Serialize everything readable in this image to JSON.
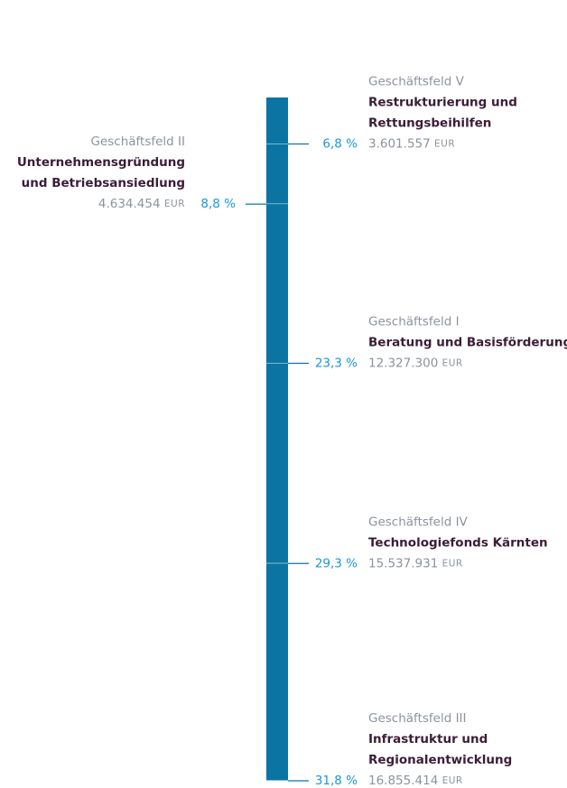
{
  "chart_data": {
    "type": "stacked-column",
    "ylim": [
      0,
      100
    ],
    "color": "#0b74a3",
    "unit": "EUR",
    "segments": [
      {
        "group": "Geschäftsfeld V",
        "name": [
          "Restrukturierung und",
          "Rettungsbeihilfen"
        ],
        "amount": "3.601.557",
        "value": 6.8,
        "value_label": "6,8 %",
        "label_side": "right"
      },
      {
        "group": "Geschäftsfeld II",
        "name": [
          "Unternehmensgründung",
          "und Betriebsansiedlung"
        ],
        "amount": "4.634.454",
        "value": 8.8,
        "value_label": "8,8 %",
        "label_side": "left"
      },
      {
        "group": "Geschäftsfeld I",
        "name": [
          "Beratung und Basisförderung"
        ],
        "amount": "12.327.300",
        "value": 23.3,
        "value_label": "23,3 %",
        "label_side": "right"
      },
      {
        "group": "Geschäftsfeld IV",
        "name": [
          "Technologiefonds Kärnten"
        ],
        "amount": "15.537.931",
        "value": 29.3,
        "value_label": "29,3 %",
        "label_side": "right"
      },
      {
        "group": "Geschäftsfeld III",
        "name": [
          "Infrastruktur und",
          "Regionalentwicklung"
        ],
        "amount": "16.855.414",
        "value": 31.8,
        "value_label": "31,8 %",
        "label_side": "right"
      }
    ]
  }
}
